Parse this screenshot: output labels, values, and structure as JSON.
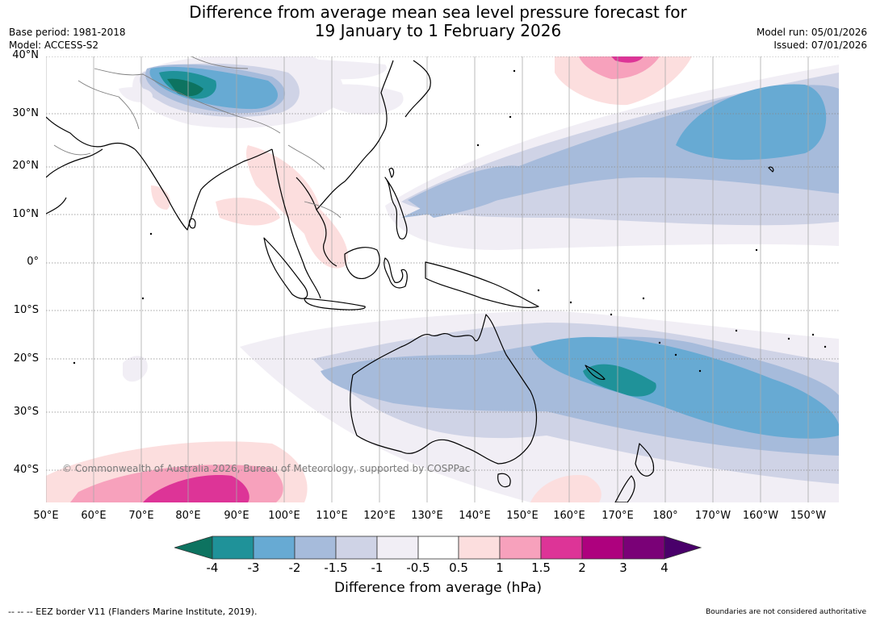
{
  "header": {
    "title_line1": "Difference from average mean sea level pressure forecast for",
    "title_line2": "19 January to 1 February 2026",
    "base_period": "Base period: 1981-2018",
    "model": "Model: ACCESS-S2",
    "model_run": "Model run: 05/01/2026",
    "issued": "Issued: 07/01/2026"
  },
  "map": {
    "lat_labels": [
      "40°N",
      "30°N",
      "20°N",
      "10°N",
      "0°",
      "10°S",
      "20°S",
      "30°S",
      "40°S"
    ],
    "lon_labels": [
      "50°E",
      "60°E",
      "70°E",
      "80°E",
      "90°E",
      "100°E",
      "110°E",
      "120°E",
      "130°E",
      "140°E",
      "150°E",
      "160°E",
      "170°E",
      "180°",
      "170°W",
      "160°W",
      "150°W"
    ],
    "copyright": "© Commonwealth of Australia 2026, Bureau of Meteorology, supported by COSPPac"
  },
  "legend": {
    "tick_labels": [
      "-4",
      "-3",
      "-2",
      "-1.5",
      "-1",
      "-0.5",
      "0.5",
      "1",
      "1.5",
      "2",
      "3",
      "4"
    ],
    "colors": [
      "#0d7360",
      "#1f9299",
      "#67aad3",
      "#a6bbdb",
      "#cfd3e6",
      "#f1eef5",
      "#ffffff",
      "#fcdede",
      "#f7a1bc",
      "#dd3497",
      "#ae017e",
      "#7a0177",
      "#49006a"
    ],
    "title": "Difference from average (hPa)"
  },
  "footer": {
    "eez_note": "--  --  -- EEZ border V11 (Flanders Marine Institute, 2019).",
    "disclaimer": "Boundaries are not considered authoritative"
  }
}
